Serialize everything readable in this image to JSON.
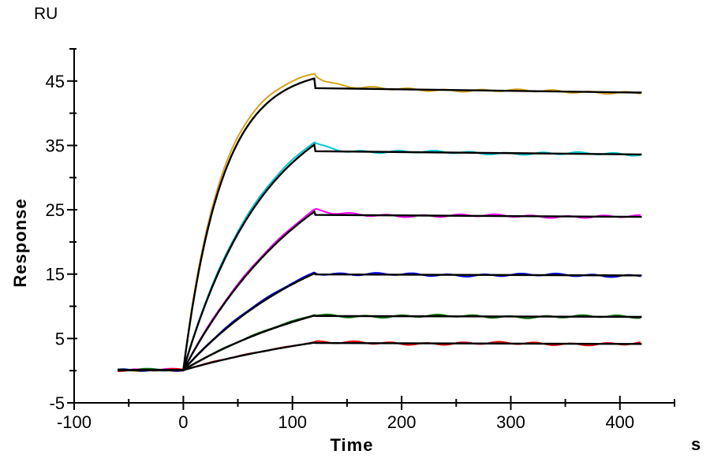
{
  "chart_data": {
    "type": "line",
    "subtype": "spr-sensorgram-with-fit",
    "title": "",
    "xlabel": "Time",
    "x_unit": "s",
    "ylabel": "Response",
    "y_unit": "RU",
    "xlim": [
      -100,
      450
    ],
    "ylim": [
      -5,
      50
    ],
    "x_major_ticks": [
      -100,
      0,
      100,
      200,
      300,
      400
    ],
    "x_minor_ticks": [
      -50,
      50,
      150,
      250,
      350,
      450
    ],
    "y_major_ticks": [
      -5,
      5,
      15,
      25,
      35,
      45
    ],
    "y_minor_ticks": [
      0,
      10,
      20,
      30,
      40,
      50
    ],
    "grid": false,
    "legend": false,
    "fit_color": "#000000",
    "phases": {
      "baseline_start_s": -60,
      "injection_start_s": 0,
      "injection_end_s": 120,
      "curve_end_s": 420
    },
    "sample_times_s": [
      0,
      20,
      40,
      60,
      80,
      100,
      120,
      180,
      240,
      300,
      360,
      420
    ],
    "series": [
      {
        "name": "concentration-1-highest",
        "color": "#D6A41C",
        "k_obs": 0.028,
        "response_peak_RU": 46.2,
        "fit_peak_RU": 45.4,
        "fit_after_drop_RU": 43.9,
        "response_end_RU": 43.2,
        "sample_RU": [
          0,
          20.5,
          32.2,
          38.9,
          42.8,
          44.9,
          46.2,
          43.8,
          43.6,
          43.5,
          43.3,
          43.2
        ]
      },
      {
        "name": "concentration-2",
        "color": "#00C8D2",
        "k_obs": 0.013,
        "response_peak_RU": 35.5,
        "fit_peak_RU": 35.1,
        "fit_after_drop_RU": 34.1,
        "response_end_RU": 33.6,
        "sample_RU": [
          0,
          10.3,
          18.2,
          24.3,
          29.1,
          32.7,
          35.5,
          34.0,
          33.9,
          33.8,
          33.7,
          33.6
        ]
      },
      {
        "name": "concentration-3",
        "color": "#FF00FF",
        "k_obs": 0.008,
        "response_peak_RU": 25.0,
        "fit_peak_RU": 24.7,
        "fit_after_drop_RU": 24.2,
        "response_end_RU": 23.9,
        "sample_RU": [
          0,
          6.0,
          11.1,
          15.4,
          19.2,
          22.3,
          25.0,
          24.1,
          24.1,
          24.0,
          24.0,
          23.9
        ]
      },
      {
        "name": "concentration-4",
        "color": "#0000E6",
        "k_obs": 0.0075,
        "response_peak_RU": 15.3,
        "fit_peak_RU": 15.1,
        "fit_after_drop_RU": 14.95,
        "response_end_RU": 14.8,
        "sample_RU": [
          0,
          3.6,
          6.7,
          9.3,
          11.6,
          13.6,
          15.3,
          14.9,
          14.9,
          14.9,
          14.8,
          14.8
        ]
      },
      {
        "name": "concentration-5",
        "color": "#076B07",
        "k_obs": 0.0065,
        "response_peak_RU": 8.65,
        "fit_peak_RU": 8.55,
        "fit_after_drop_RU": 8.5,
        "response_end_RU": 8.35,
        "sample_RU": [
          0,
          1.9,
          3.7,
          5.2,
          6.5,
          7.6,
          8.7,
          8.5,
          8.4,
          8.4,
          8.4,
          8.4
        ]
      },
      {
        "name": "concentration-6-lowest",
        "color": "#E00000",
        "k_obs": 0.0055,
        "response_peak_RU": 4.4,
        "fit_peak_RU": 4.35,
        "fit_after_drop_RU": 4.3,
        "response_end_RU": 4.15,
        "sample_RU": [
          0,
          0.9,
          1.8,
          2.6,
          3.2,
          3.9,
          4.4,
          4.3,
          4.2,
          4.2,
          4.2,
          4.2
        ]
      }
    ]
  }
}
